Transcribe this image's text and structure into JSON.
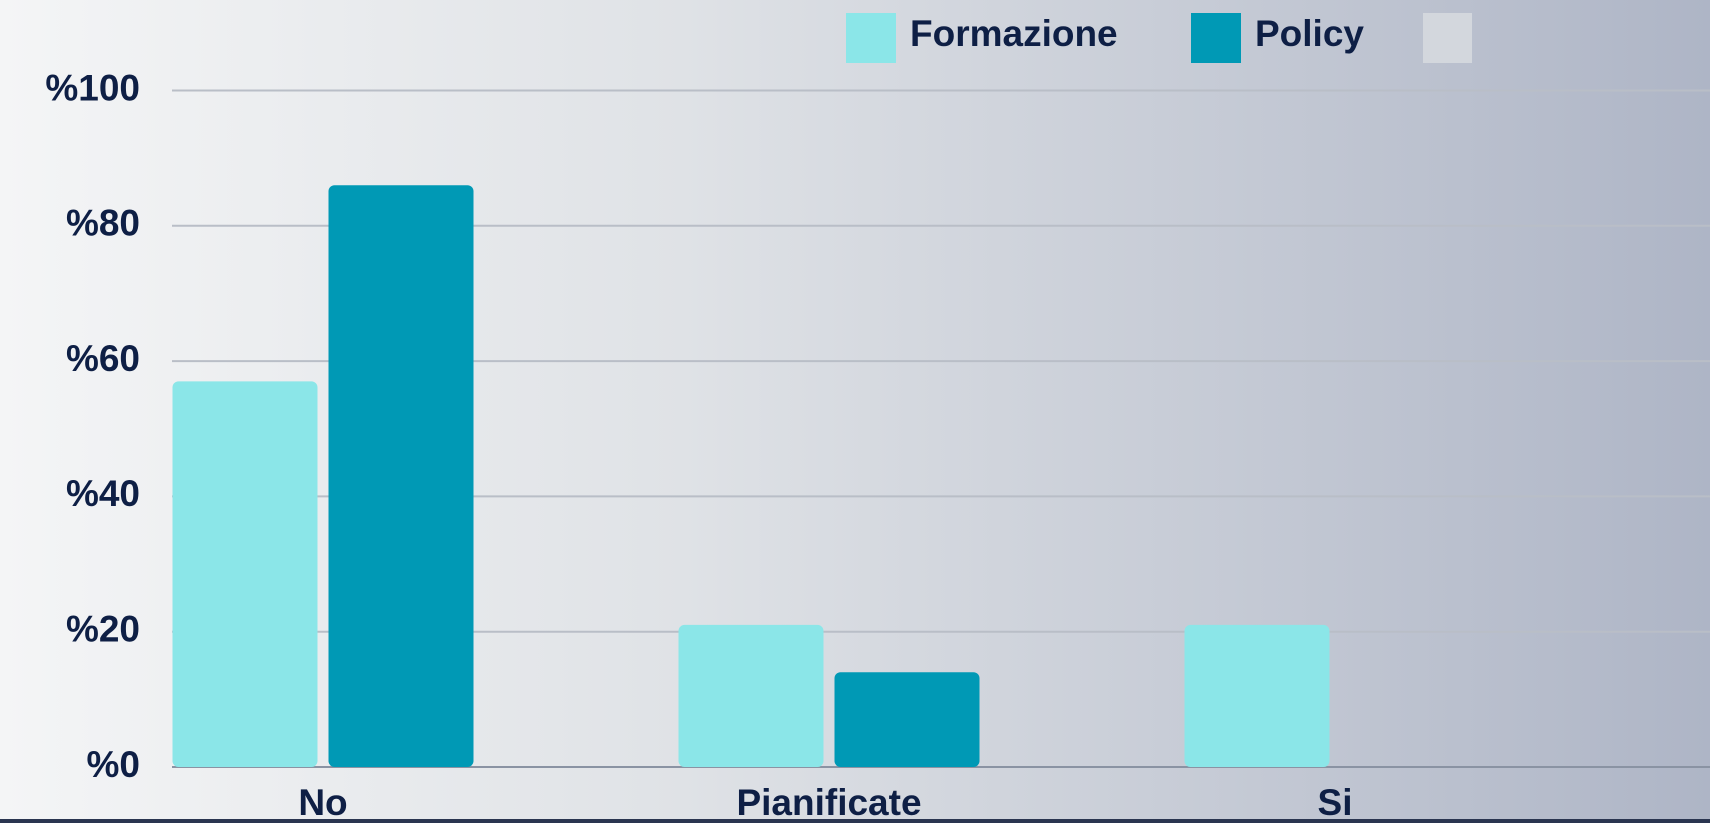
{
  "chart_data": {
    "type": "bar",
    "categories": [
      "No",
      "Pianificate",
      "Si"
    ],
    "series": [
      {
        "name": "Formazione",
        "color": "#8be6e8",
        "values": [
          57,
          21,
          21
        ]
      },
      {
        "name": "Policy",
        "color": "#0099b5",
        "values": [
          86,
          14,
          0
        ]
      }
    ],
    "ylim": [
      0,
      100
    ],
    "yticks": [
      {
        "value": 0,
        "label": "%0"
      },
      {
        "value": 20,
        "label": "%20"
      },
      {
        "value": 40,
        "label": "%40"
      },
      {
        "value": 60,
        "label": "%60"
      },
      {
        "value": 80,
        "label": "%80"
      },
      {
        "value": 100,
        "label": "%100"
      }
    ],
    "grid": true
  }
}
